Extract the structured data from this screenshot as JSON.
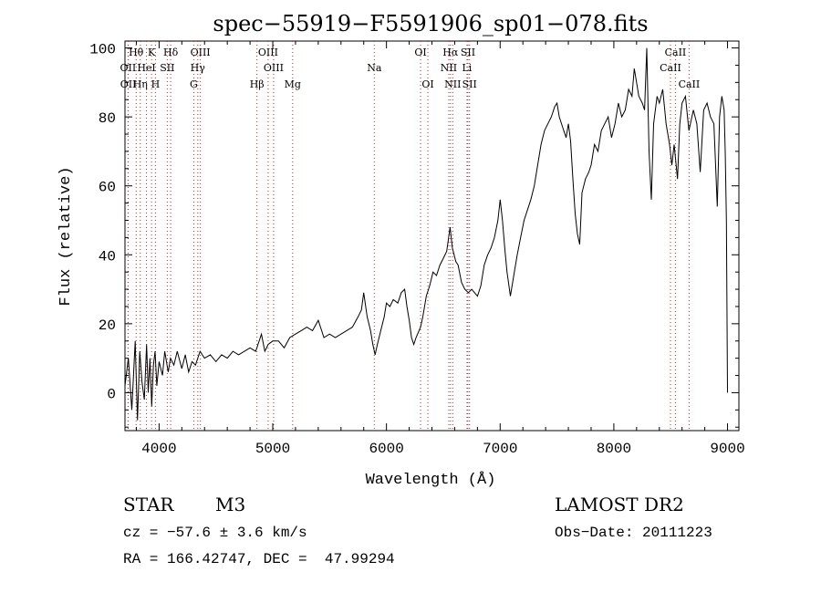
{
  "chart_data": {
    "type": "line",
    "title": "spec−55919−F5591906_sp01−078.fits",
    "xlabel": "Wavelength (Å)",
    "ylabel": "Flux (relative)",
    "xlim": [
      3700,
      9100
    ],
    "ylim": [
      -11,
      102
    ],
    "xticks": [
      4000,
      5000,
      6000,
      7000,
      8000,
      9000
    ],
    "yticks": [
      0,
      20,
      40,
      60,
      80,
      100
    ],
    "grid": false,
    "series": [
      {
        "name": "flux",
        "points": [
          [
            3700,
            2
          ],
          [
            3730,
            10
          ],
          [
            3760,
            -5
          ],
          [
            3790,
            15
          ],
          [
            3810,
            -8
          ],
          [
            3830,
            12
          ],
          [
            3850,
            3
          ],
          [
            3870,
            -2
          ],
          [
            3890,
            14
          ],
          [
            3905,
            0
          ],
          [
            3920,
            10
          ],
          [
            3935,
            -4
          ],
          [
            3950,
            8
          ],
          [
            3965,
            12
          ],
          [
            3980,
            2
          ],
          [
            4000,
            9
          ],
          [
            4030,
            5
          ],
          [
            4050,
            12
          ],
          [
            4080,
            6
          ],
          [
            4100,
            10
          ],
          [
            4130,
            8
          ],
          [
            4160,
            12
          ],
          [
            4200,
            7
          ],
          [
            4230,
            11
          ],
          [
            4260,
            6
          ],
          [
            4290,
            9
          ],
          [
            4320,
            8
          ],
          [
            4360,
            12
          ],
          [
            4400,
            10
          ],
          [
            4450,
            11
          ],
          [
            4500,
            9
          ],
          [
            4550,
            11
          ],
          [
            4600,
            10
          ],
          [
            4650,
            12
          ],
          [
            4700,
            11
          ],
          [
            4750,
            12
          ],
          [
            4800,
            13
          ],
          [
            4850,
            12
          ],
          [
            4900,
            17
          ],
          [
            4930,
            12
          ],
          [
            4960,
            14
          ],
          [
            5000,
            15
          ],
          [
            5050,
            15
          ],
          [
            5100,
            13
          ],
          [
            5150,
            16
          ],
          [
            5200,
            17
          ],
          [
            5250,
            18
          ],
          [
            5300,
            19
          ],
          [
            5350,
            18
          ],
          [
            5400,
            21
          ],
          [
            5450,
            16
          ],
          [
            5500,
            17
          ],
          [
            5550,
            16
          ],
          [
            5600,
            17
          ],
          [
            5650,
            18
          ],
          [
            5700,
            19
          ],
          [
            5750,
            22
          ],
          [
            5780,
            24
          ],
          [
            5800,
            29
          ],
          [
            5830,
            22
          ],
          [
            5860,
            18
          ],
          [
            5880,
            14
          ],
          [
            5900,
            11
          ],
          [
            5920,
            14
          ],
          [
            5950,
            18
          ],
          [
            5980,
            22
          ],
          [
            6000,
            26
          ],
          [
            6030,
            25
          ],
          [
            6060,
            27
          ],
          [
            6100,
            26
          ],
          [
            6130,
            29
          ],
          [
            6160,
            30
          ],
          [
            6180,
            25
          ],
          [
            6200,
            21
          ],
          [
            6220,
            16
          ],
          [
            6240,
            14
          ],
          [
            6260,
            16
          ],
          [
            6300,
            19
          ],
          [
            6320,
            22
          ],
          [
            6350,
            28
          ],
          [
            6380,
            31
          ],
          [
            6410,
            35
          ],
          [
            6440,
            34
          ],
          [
            6470,
            37
          ],
          [
            6500,
            39
          ],
          [
            6530,
            41
          ],
          [
            6560,
            48
          ],
          [
            6580,
            42
          ],
          [
            6610,
            38
          ],
          [
            6630,
            37
          ],
          [
            6660,
            32
          ],
          [
            6690,
            30
          ],
          [
            6720,
            29
          ],
          [
            6750,
            30
          ],
          [
            6800,
            28
          ],
          [
            6830,
            31
          ],
          [
            6860,
            37
          ],
          [
            6890,
            40
          ],
          [
            6920,
            42
          ],
          [
            6950,
            45
          ],
          [
            6980,
            50
          ],
          [
            7000,
            56
          ],
          [
            7020,
            50
          ],
          [
            7040,
            42
          ],
          [
            7060,
            35
          ],
          [
            7090,
            28
          ],
          [
            7120,
            34
          ],
          [
            7150,
            40
          ],
          [
            7180,
            45
          ],
          [
            7210,
            50
          ],
          [
            7240,
            53
          ],
          [
            7270,
            56
          ],
          [
            7300,
            60
          ],
          [
            7330,
            66
          ],
          [
            7360,
            72
          ],
          [
            7390,
            76
          ],
          [
            7420,
            78
          ],
          [
            7450,
            80
          ],
          [
            7480,
            83
          ],
          [
            7500,
            84
          ],
          [
            7520,
            80
          ],
          [
            7550,
            77
          ],
          [
            7580,
            74
          ],
          [
            7600,
            78
          ],
          [
            7620,
            73
          ],
          [
            7640,
            62
          ],
          [
            7660,
            52
          ],
          [
            7680,
            46
          ],
          [
            7700,
            43
          ],
          [
            7720,
            58
          ],
          [
            7750,
            62
          ],
          [
            7780,
            64
          ],
          [
            7800,
            66
          ],
          [
            7830,
            72
          ],
          [
            7860,
            70
          ],
          [
            7890,
            76
          ],
          [
            7920,
            78
          ],
          [
            7950,
            80
          ],
          [
            7980,
            74
          ],
          [
            8010,
            78
          ],
          [
            8040,
            84
          ],
          [
            8070,
            80
          ],
          [
            8100,
            82
          ],
          [
            8130,
            88
          ],
          [
            8160,
            86
          ],
          [
            8180,
            94
          ],
          [
            8200,
            90
          ],
          [
            8220,
            86
          ],
          [
            8250,
            84
          ],
          [
            8270,
            82
          ],
          [
            8290,
            100
          ],
          [
            8310,
            70
          ],
          [
            8330,
            56
          ],
          [
            8350,
            78
          ],
          [
            8380,
            86
          ],
          [
            8400,
            84
          ],
          [
            8430,
            88
          ],
          [
            8460,
            78
          ],
          [
            8490,
            72
          ],
          [
            8510,
            66
          ],
          [
            8530,
            72
          ],
          [
            8560,
            62
          ],
          [
            8580,
            78
          ],
          [
            8600,
            84
          ],
          [
            8630,
            86
          ],
          [
            8660,
            76
          ],
          [
            8700,
            82
          ],
          [
            8730,
            78
          ],
          [
            8760,
            64
          ],
          [
            8790,
            82
          ],
          [
            8820,
            84
          ],
          [
            8850,
            80
          ],
          [
            8880,
            78
          ],
          [
            8910,
            54
          ],
          [
            8930,
            80
          ],
          [
            8950,
            86
          ],
          [
            8970,
            82
          ],
          [
            8980,
            70
          ],
          [
            8990,
            50
          ],
          [
            9000,
            0
          ]
        ]
      }
    ],
    "line_markers": [
      {
        "label": "Hθ",
        "wavelength": 3798,
        "row": 1
      },
      {
        "label": "K",
        "wavelength": 3934,
        "row": 1
      },
      {
        "label": "Hδ",
        "wavelength": 4102,
        "row": 1
      },
      {
        "label": "OIII",
        "wavelength": 4363,
        "row": 1
      },
      {
        "label": "OIII",
        "wavelength": 4959,
        "row": 1
      },
      {
        "label": "OI",
        "wavelength": 6300,
        "row": 1
      },
      {
        "label": "Hα",
        "wavelength": 6563,
        "row": 1
      },
      {
        "label": "SII",
        "wavelength": 6717,
        "row": 1
      },
      {
        "label": "CaII",
        "wavelength": 8542,
        "row": 1
      },
      {
        "label": "OII",
        "wavelength": 3727,
        "row": 2
      },
      {
        "label": "HeI",
        "wavelength": 3889,
        "row": 2
      },
      {
        "label": "SII",
        "wavelength": 4072,
        "row": 2
      },
      {
        "label": "Hγ",
        "wavelength": 4340,
        "row": 2
      },
      {
        "label": "OIII",
        "wavelength": 5007,
        "row": 2
      },
      {
        "label": "NII",
        "wavelength": 6548,
        "row": 2
      },
      {
        "label": "Li",
        "wavelength": 6708,
        "row": 2
      },
      {
        "label": "CaII",
        "wavelength": 8498,
        "row": 2
      },
      {
        "label": "Na",
        "wavelength": 5893,
        "row": 2
      },
      {
        "label": "OII",
        "wavelength": 3729,
        "row": 3
      },
      {
        "label": "Hη",
        "wavelength": 3835,
        "row": 3
      },
      {
        "label": "H",
        "wavelength": 3968,
        "row": 3
      },
      {
        "label": "G",
        "wavelength": 4305,
        "row": 3
      },
      {
        "label": "Hβ",
        "wavelength": 4861,
        "row": 3
      },
      {
        "label": "Mg",
        "wavelength": 5175,
        "row": 3
      },
      {
        "label": "OI",
        "wavelength": 6364,
        "row": 3
      },
      {
        "label": "NII",
        "wavelength": 6583,
        "row": 3
      },
      {
        "label": "SII",
        "wavelength": 6731,
        "row": 3
      },
      {
        "label": "CaII",
        "wavelength": 8662,
        "row": 3
      }
    ]
  },
  "info": {
    "class_label": "STAR",
    "subclass_label": "M3",
    "survey": "LAMOST DR2",
    "velocity": "cz = −57.6 ± 3.6 km/s",
    "obs_date": "Obs−Date: 20111223",
    "coords": "RA = 166.42747, DEC =  47.99294"
  },
  "colors": {
    "spectrum": "#000000",
    "marker_line": "#d02020",
    "axis": "#000000"
  }
}
